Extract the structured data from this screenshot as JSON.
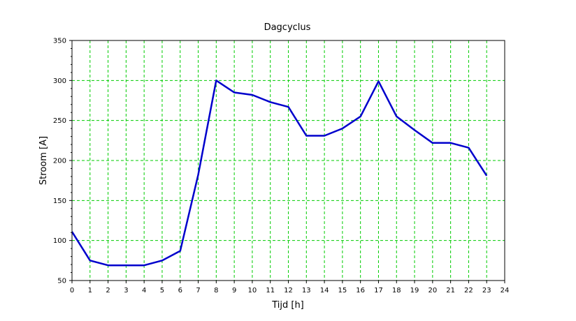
{
  "chart_data": {
    "type": "line",
    "title": "Dagcyclus",
    "xlabel": "Tijd [h]",
    "ylabel": "Stroom [A]",
    "xlim": [
      0,
      24
    ],
    "ylim": [
      50,
      350
    ],
    "xticks": [
      0,
      1,
      2,
      3,
      4,
      5,
      6,
      7,
      8,
      9,
      10,
      11,
      12,
      13,
      14,
      15,
      16,
      17,
      18,
      19,
      20,
      21,
      22,
      23,
      24
    ],
    "yticks": [
      50,
      100,
      150,
      200,
      250,
      300,
      350
    ],
    "grid": true,
    "grid_color": "#00cc00",
    "series": [
      {
        "color": "#0000cc",
        "x": [
          0,
          1,
          2,
          3,
          4,
          5,
          6,
          7,
          8,
          9,
          10,
          11,
          12,
          13,
          14,
          15,
          16,
          17,
          18,
          19,
          20,
          21,
          22,
          23
        ],
        "values": [
          111,
          75,
          69,
          69,
          69,
          75,
          87,
          182,
          300,
          285,
          282,
          273,
          267,
          231,
          231,
          240,
          255,
          299,
          255,
          238,
          222,
          222,
          216,
          181
        ]
      }
    ]
  }
}
